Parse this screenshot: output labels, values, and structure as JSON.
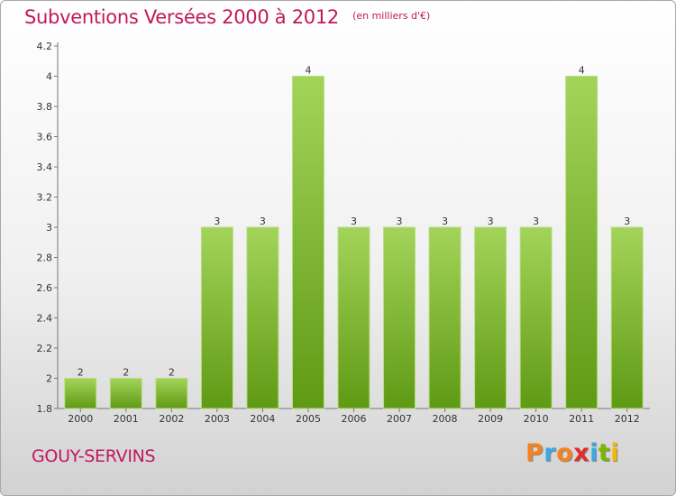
{
  "header": {
    "title": "Subventions Versées 2000 à 2012",
    "subtitle": "(en milliers d'€)"
  },
  "footer": {
    "commune": "GOUY-SERVINS",
    "brand": "Proxiti",
    "brand_colors": [
      "#f58220",
      "#39a9e0",
      "#f58220",
      "#e32b2b",
      "#39a9e0",
      "#7ab800",
      "#f5b800"
    ]
  },
  "chart_data": {
    "type": "bar",
    "title": "Subventions Versées 2000 à 2012",
    "subtitle": "(en milliers d'€)",
    "categories": [
      "2000",
      "2001",
      "2002",
      "2003",
      "2004",
      "2005",
      "2006",
      "2007",
      "2008",
      "2009",
      "2010",
      "2011",
      "2012"
    ],
    "values": [
      2,
      2,
      2,
      3,
      3,
      4,
      3,
      3,
      3,
      3,
      3,
      4,
      3
    ],
    "value_labels": [
      "2",
      "2",
      "2",
      "3",
      "3",
      "4",
      "3",
      "3",
      "3",
      "3",
      "3",
      "4",
      "3"
    ],
    "ylim": [
      1.8,
      4.2
    ],
    "yticks": [
      1.8,
      2,
      2.2,
      2.4,
      2.6,
      2.8,
      3,
      3.2,
      3.4,
      3.6,
      3.8,
      4,
      4.2
    ],
    "ytick_labels": [
      "1.8",
      "2",
      "2.2",
      "2.4",
      "2.6",
      "2.8",
      "3",
      "3.2",
      "3.4",
      "3.6",
      "3.8",
      "4",
      "4.2"
    ],
    "grid": false,
    "bar_color_light": "#a3d45a",
    "bar_color_dark": "#5f9a14"
  }
}
